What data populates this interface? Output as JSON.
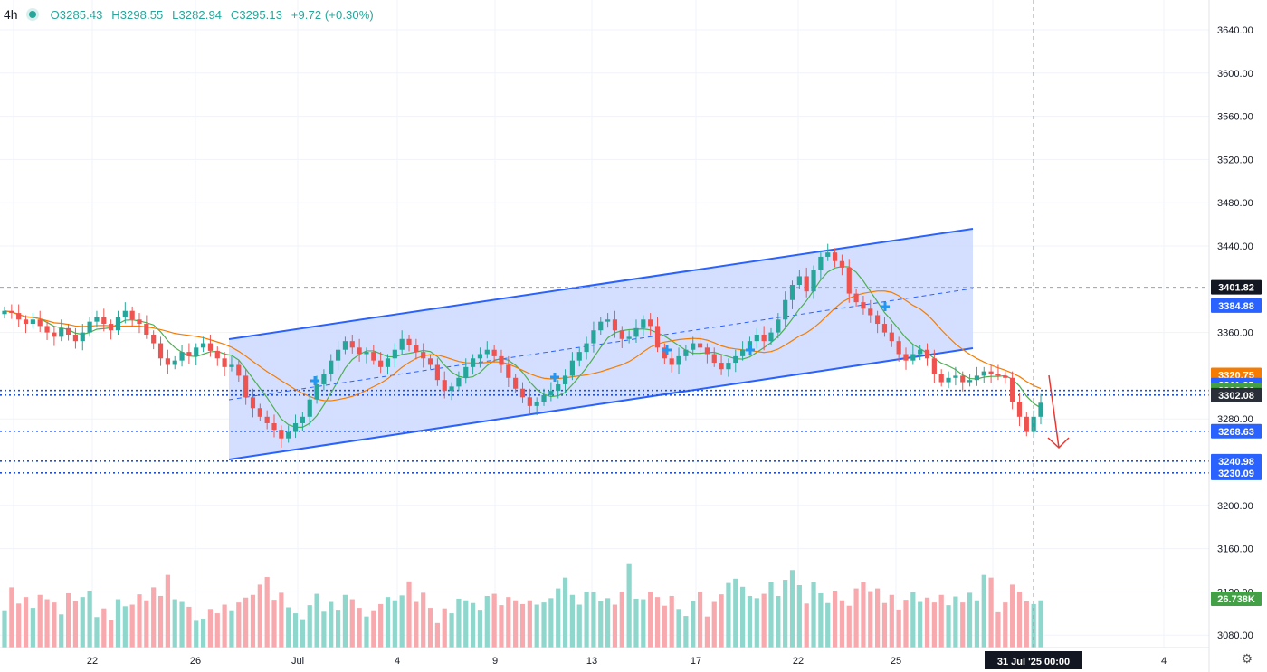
{
  "legend": {
    "timeframe": "4h",
    "open": "O3285.43",
    "high": "H3298.55",
    "low": "L3282.94",
    "close": "C3295.13",
    "change": "+9.72 (+0.30%)"
  },
  "colors": {
    "up": "#26a69a",
    "down": "#ef5350",
    "volume_up": "#8fd6cc",
    "volume_down": "#f7a9ad",
    "channel_line": "#2962ff",
    "channel_fill": "#cdd9ff",
    "ma_fast": "#4caf50",
    "ma_slow": "#f57c00",
    "arrow": "#e53935"
  },
  "chart_data": {
    "type": "candlestick",
    "symbol_timeframe": "4h",
    "y_axis": {
      "ticks": [
        3640,
        3600,
        3560,
        3520,
        3480,
        3440,
        3360,
        3280,
        3200,
        3160,
        3120,
        3080
      ],
      "range": [
        3067,
        3650
      ]
    },
    "x_axis": {
      "tick_labels": [
        "22",
        "26",
        "Jul",
        "4",
        "9",
        "13",
        "17",
        "22",
        "25",
        "4"
      ],
      "cursor_label": "31 Jul '25  00:00"
    },
    "price_labels": [
      {
        "value": 3401.82,
        "text": "3401.82",
        "style": "last"
      },
      {
        "value": 3384.88,
        "text": "3384.88",
        "style": "blue"
      },
      {
        "value": 3320.75,
        "text": "3320.75",
        "style": "orange"
      },
      {
        "value": 3311.35,
        "text": "3311.35",
        "style": "blue"
      },
      {
        "value": 3306.36,
        "text": "3306.36",
        "style": "green"
      },
      {
        "value": 3302.08,
        "text": "3302.08",
        "style": "dark"
      },
      {
        "value": 3268.63,
        "text": "3268.63",
        "style": "blue"
      },
      {
        "value": 3240.98,
        "text": "3240.98",
        "style": "blue"
      },
      {
        "value": 3230.09,
        "text": "3230.09",
        "style": "blue"
      },
      {
        "value": null,
        "text": "26.738K",
        "style": "green"
      }
    ],
    "levels": [
      3306.36,
      3302.08,
      3268.63,
      3240.98,
      3230.09,
      3401.82
    ],
    "close_series": [
      3380,
      3378,
      3372,
      3368,
      3372,
      3366,
      3360,
      3356,
      3364,
      3358,
      3352,
      3360,
      3370,
      3374,
      3368,
      3362,
      3374,
      3380,
      3372,
      3368,
      3358,
      3350,
      3336,
      3330,
      3334,
      3342,
      3338,
      3346,
      3350,
      3343,
      3336,
      3328,
      3330,
      3320,
      3300,
      3290,
      3282,
      3276,
      3270,
      3262,
      3268,
      3276,
      3282,
      3298,
      3312,
      3322,
      3334,
      3344,
      3352,
      3346,
      3340,
      3342,
      3334,
      3328,
      3336,
      3344,
      3354,
      3348,
      3342,
      3336,
      3330,
      3316,
      3306,
      3310,
      3318,
      3328,
      3336,
      3340,
      3344,
      3338,
      3330,
      3318,
      3308,
      3300,
      3292,
      3296,
      3302,
      3306,
      3312,
      3320,
      3334,
      3342,
      3350,
      3362,
      3370,
      3372,
      3362,
      3354,
      3356,
      3364,
      3372,
      3366,
      3346,
      3336,
      3330,
      3338,
      3344,
      3350,
      3346,
      3340,
      3332,
      3326,
      3332,
      3338,
      3344,
      3352,
      3358,
      3352,
      3360,
      3372,
      3390,
      3404,
      3412,
      3398,
      3418,
      3430,
      3434,
      3426,
      3420,
      3396,
      3388,
      3382,
      3376,
      3368,
      3360,
      3352,
      3340,
      3334,
      3340,
      3344,
      3336,
      3322,
      3314,
      3318,
      3320,
      3314,
      3316,
      3320,
      3324,
      3322,
      3320,
      3318,
      3296,
      3282,
      3268,
      3282,
      3295
    ],
    "volume_series": [
      3112,
      3156,
      3126,
      3138,
      3118,
      3142,
      3134,
      3128,
      3106,
      3145,
      3131,
      3138,
      3150,
      3101,
      3117,
      3096,
      3134,
      3121,
      3124,
      3143,
      3132,
      3156,
      3140,
      3179,
      3134,
      3129,
      3120,
      3094,
      3098,
      3116,
      3108,
      3124,
      3112,
      3128,
      3137,
      3142,
      3161,
      3175,
      3133,
      3146,
      3119,
      3108,
      3097,
      3123,
      3144,
      3111,
      3129,
      3113,
      3142,
      3134,
      3118,
      3102,
      3112,
      3125,
      3138,
      3132,
      3141,
      3167,
      3129,
      3146,
      3118,
      3090,
      3117,
      3108,
      3135,
      3132,
      3127,
      3113,
      3140,
      3144,
      3123,
      3138,
      3132,
      3125,
      3132,
      3124,
      3128,
      3136,
      3154,
      3174,
      3142,
      3124,
      3148,
      3147,
      3131,
      3136,
      3124,
      3148,
      3199,
      3135,
      3134,
      3148,
      3138,
      3122,
      3140,
      3116,
      3103,
      3131,
      3148,
      3102,
      3129,
      3143,
      3164,
      3172,
      3157,
      3140,
      3136,
      3144,
      3166,
      3140,
      3170,
      3188,
      3160,
      3126,
      3165,
      3145,
      3127,
      3150,
      3132,
      3122,
      3154,
      3165,
      3149,
      3154,
      3127,
      3142,
      3115,
      3133,
      3147,
      3129,
      3137,
      3128,
      3142,
      3123,
      3139,
      3128,
      3146,
      3132,
      3179,
      3174,
      3110,
      3128,
      3161,
      3148,
      3130,
      3125,
      3132
    ]
  }
}
